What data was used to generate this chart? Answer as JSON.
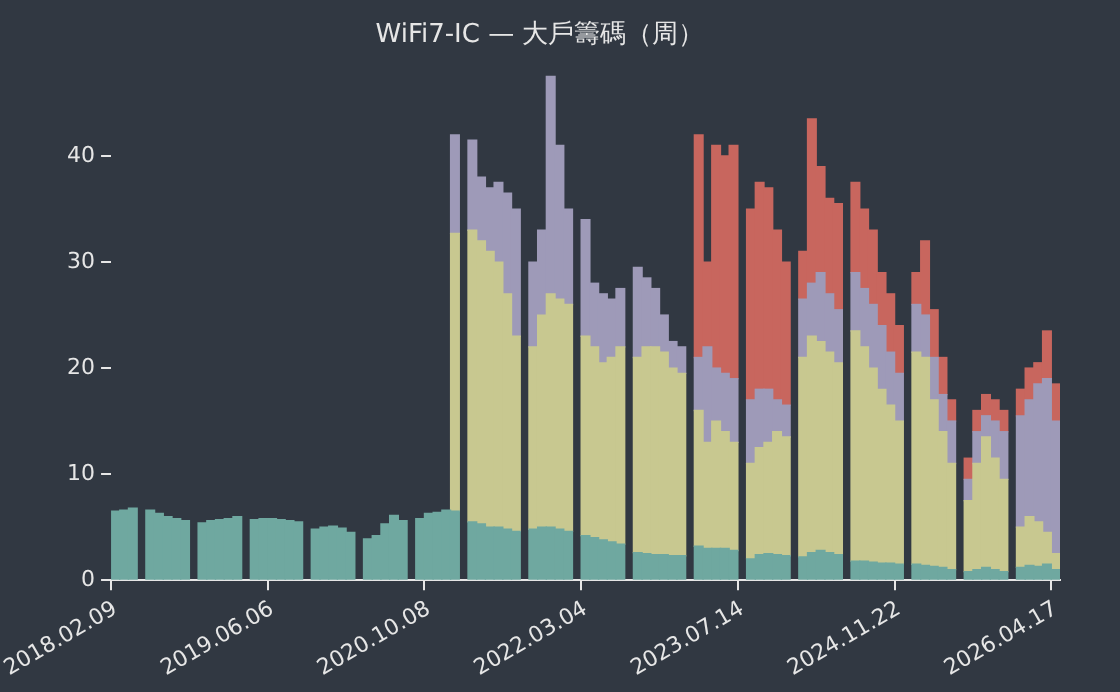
{
  "chart_data": {
    "type": "bar",
    "title": "WiFi7-IC — 大戶籌碼（周）",
    "stacked": true,
    "categories": [
      "2018.02.09",
      null,
      null,
      null,
      null,
      null,
      null,
      null,
      null,
      null,
      null,
      null,
      null,
      null,
      null,
      null,
      null,
      null,
      "2019.06.06",
      null,
      null,
      null,
      null,
      null,
      null,
      null,
      null,
      null,
      null,
      null,
      null,
      null,
      null,
      null,
      null,
      null,
      "2020.10.08",
      null,
      null,
      null,
      null,
      null,
      null,
      null,
      null,
      null,
      null,
      null,
      null,
      null,
      null,
      null,
      null,
      null,
      "2022.03.04",
      null,
      null,
      null,
      null,
      null,
      null,
      null,
      null,
      null,
      null,
      null,
      null,
      null,
      null,
      null,
      null,
      null,
      "2023.07.14",
      null,
      null,
      null,
      null,
      null,
      null,
      null,
      null,
      null,
      null,
      null,
      null,
      null,
      null,
      null,
      null,
      null,
      "2024.11.22",
      null,
      null,
      null,
      null,
      null,
      null,
      null,
      null,
      null,
      null,
      null,
      null,
      null,
      null,
      null,
      null,
      null,
      "2026.04.17"
    ],
    "series": [
      {
        "color": "#6fa8a0",
        "values": [
          6.5,
          6.6,
          6.8,
          null,
          6.6,
          6.3,
          6.0,
          5.8,
          5.6,
          null,
          5.4,
          5.6,
          5.7,
          5.8,
          6.0,
          null,
          5.7,
          5.8,
          5.8,
          5.7,
          5.6,
          5.5,
          null,
          4.8,
          5.0,
          5.1,
          4.9,
          4.5,
          null,
          3.9,
          4.2,
          5.3,
          6.1,
          5.6,
          null,
          5.8,
          6.3,
          6.4,
          6.6,
          6.5,
          null,
          5.5,
          5.3,
          5.0,
          5.0,
          4.8,
          4.6,
          null,
          4.8,
          5.0,
          5.0,
          4.8,
          4.6,
          null,
          4.2,
          4.0,
          3.8,
          3.6,
          3.4,
          null,
          2.6,
          2.5,
          2.4,
          2.4,
          2.3,
          2.3,
          null,
          3.2,
          3.0,
          3.0,
          3.0,
          2.8,
          null,
          2.0,
          2.4,
          2.5,
          2.4,
          2.3,
          null,
          2.2,
          2.6,
          2.8,
          2.6,
          2.4,
          null,
          1.8,
          1.8,
          1.7,
          1.6,
          1.6,
          1.5,
          null,
          1.5,
          1.4,
          1.3,
          1.2,
          1.0,
          null,
          0.8,
          1.0,
          1.2,
          1.0,
          0.8,
          null,
          1.2,
          1.4,
          1.3,
          1.5,
          1.0
        ]
      },
      {
        "color": "#c8c890",
        "values": [
          null,
          null,
          null,
          null,
          null,
          null,
          null,
          null,
          null,
          null,
          null,
          null,
          null,
          null,
          null,
          null,
          null,
          null,
          null,
          null,
          null,
          null,
          null,
          null,
          null,
          null,
          null,
          null,
          null,
          null,
          null,
          null,
          null,
          null,
          null,
          null,
          null,
          null,
          null,
          26.2,
          null,
          27.5,
          26.7,
          26,
          25,
          22.2,
          18.4,
          null,
          17.2,
          20,
          22,
          21.7,
          21.4,
          null,
          18.8,
          18,
          16.7,
          17.4,
          18.6,
          null,
          18.4,
          19.5,
          19.6,
          19.1,
          17.7,
          17.2,
          null,
          12.8,
          10,
          12,
          11,
          10.2,
          null,
          9,
          10.1,
          10.5,
          11.6,
          11.2,
          null,
          18.8,
          20.4,
          19.7,
          18.9,
          18.1,
          null,
          21.7,
          20.2,
          18.3,
          16.4,
          14.9,
          13.5,
          null,
          20,
          19.6,
          15.7,
          12.8,
          10,
          null,
          6.7,
          10,
          12.3,
          10.5,
          8.7,
          null,
          3.8,
          4.6,
          4.2,
          3,
          1.5
        ]
      },
      {
        "color": "#9e9ab8",
        "values": [
          null,
          null,
          null,
          null,
          null,
          null,
          null,
          null,
          null,
          null,
          null,
          null,
          null,
          null,
          null,
          null,
          null,
          null,
          null,
          null,
          null,
          null,
          null,
          null,
          null,
          null,
          null,
          null,
          null,
          null,
          null,
          null,
          null,
          null,
          null,
          null,
          null,
          null,
          null,
          9.3,
          null,
          8.5,
          6,
          6,
          7.5,
          9.5,
          12,
          null,
          8,
          8,
          20.5,
          14.5,
          9,
          null,
          11,
          6,
          6.5,
          5.5,
          5.5,
          null,
          8.5,
          6.5,
          5.5,
          3.5,
          2.5,
          2.5,
          null,
          5,
          9,
          5,
          5.5,
          6,
          null,
          6,
          5.5,
          5,
          3,
          3,
          null,
          5.5,
          5,
          6.5,
          5.5,
          5,
          null,
          5.5,
          5.5,
          6,
          6,
          5,
          4.5,
          null,
          4.5,
          4,
          4,
          3.5,
          4,
          null,
          2,
          3,
          2,
          3.5,
          4.5,
          null,
          10.5,
          11,
          13,
          14.5,
          12.5
        ]
      },
      {
        "color": "#c8665e",
        "values": [
          null,
          null,
          null,
          null,
          null,
          null,
          null,
          null,
          null,
          null,
          null,
          null,
          null,
          null,
          null,
          null,
          null,
          null,
          null,
          null,
          null,
          null,
          null,
          null,
          null,
          null,
          null,
          null,
          null,
          null,
          null,
          null,
          null,
          null,
          null,
          null,
          null,
          null,
          null,
          null,
          null,
          null,
          null,
          null,
          null,
          null,
          null,
          null,
          null,
          null,
          null,
          null,
          null,
          null,
          null,
          null,
          null,
          null,
          null,
          null,
          null,
          null,
          null,
          null,
          null,
          null,
          null,
          21,
          8,
          21,
          20.5,
          22,
          null,
          18,
          19.5,
          19,
          16,
          13.5,
          null,
          4.5,
          15.5,
          10,
          9,
          10,
          null,
          8.5,
          7.5,
          7,
          5,
          5.5,
          4.5,
          null,
          3,
          7,
          4.5,
          3.5,
          2,
          null,
          2,
          2,
          2,
          2,
          2,
          null,
          2.5,
          3,
          2,
          4.5,
          3.5
        ]
      }
    ],
    "ylim": [
      0,
      48
    ],
    "yticks": [
      0,
      10,
      20,
      30,
      40
    ]
  }
}
